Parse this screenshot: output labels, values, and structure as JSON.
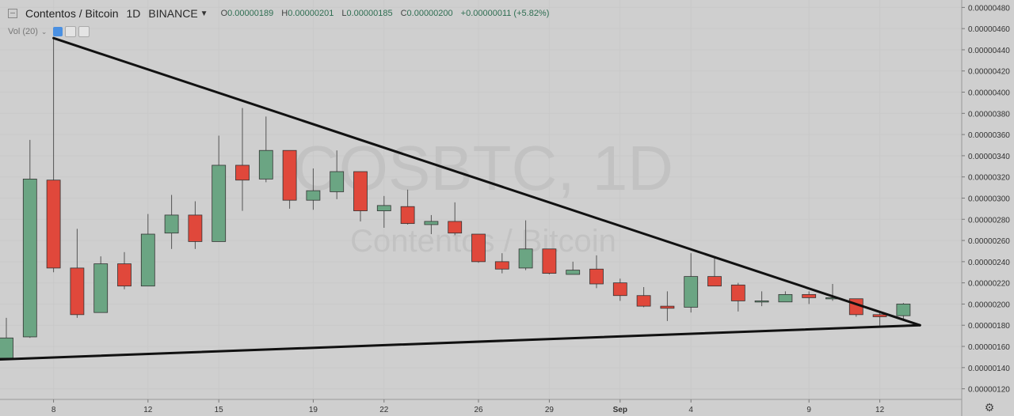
{
  "header": {
    "symbol": "Contentos / Bitcoin",
    "interval": "1D",
    "exchange": "BINANCE",
    "open_label": "O",
    "open": "0.00000189",
    "high_label": "H",
    "high": "0.00000201",
    "low_label": "L",
    "low": "0.00000185",
    "close_label": "C",
    "close": "0.00000200",
    "change": "+0.00000011 (+5.82%)"
  },
  "volume_indicator": {
    "label": "Vol (20)"
  },
  "watermark": {
    "line1": "COSBTC, 1D",
    "line2": "Contentos / Bitcoin"
  },
  "colors": {
    "up": "#6ba583",
    "down": "#e0483b",
    "background": "#cfcfcf",
    "trendline": "#111111"
  },
  "chart_data": {
    "type": "candlestick",
    "y_unit": "BTC",
    "ylim": [
      1.1e-06,
      4.87e-06
    ],
    "y_ticks": [
      "0.00000120",
      "0.00000140",
      "0.00000160",
      "0.00000180",
      "0.00000200",
      "0.00000220",
      "0.00000240",
      "0.00000260",
      "0.00000280",
      "0.00000300",
      "0.00000320",
      "0.00000340",
      "0.00000360",
      "0.00000380",
      "0.00000400",
      "0.00000420",
      "0.00000440",
      "0.00000460",
      "0.00000480"
    ],
    "x_ticks": [
      "8",
      "12",
      "15",
      "19",
      "22",
      "26",
      "29",
      "Sep",
      "4",
      "9",
      "12"
    ],
    "candles": [
      {
        "open": 1.49e-06,
        "high": 1.87e-06,
        "low": 1.47e-06,
        "close": 1.68e-06
      },
      {
        "open": 1.69e-06,
        "high": 3.55e-06,
        "low": 1.68e-06,
        "close": 3.18e-06
      },
      {
        "open": 3.17e-06,
        "high": 4.5e-06,
        "low": 2.3e-06,
        "close": 2.34e-06
      },
      {
        "open": 2.34e-06,
        "high": 2.71e-06,
        "low": 1.87e-06,
        "close": 1.9e-06
      },
      {
        "open": 1.92e-06,
        "high": 2.45e-06,
        "low": 1.92e-06,
        "close": 2.38e-06
      },
      {
        "open": 2.38e-06,
        "high": 2.49e-06,
        "low": 2.14e-06,
        "close": 2.17e-06
      },
      {
        "open": 2.17e-06,
        "high": 2.85e-06,
        "low": 2.17e-06,
        "close": 2.66e-06
      },
      {
        "open": 2.67e-06,
        "high": 3.03e-06,
        "low": 2.52e-06,
        "close": 2.84e-06
      },
      {
        "open": 2.84e-06,
        "high": 2.97e-06,
        "low": 2.52e-06,
        "close": 2.59e-06
      },
      {
        "open": 2.59e-06,
        "high": 3.59e-06,
        "low": 2.59e-06,
        "close": 3.31e-06
      },
      {
        "open": 3.31e-06,
        "high": 3.85e-06,
        "low": 2.88e-06,
        "close": 3.17e-06
      },
      {
        "open": 3.18e-06,
        "high": 3.77e-06,
        "low": 3.15e-06,
        "close": 3.45e-06
      },
      {
        "open": 3.45e-06,
        "high": 3.45e-06,
        "low": 2.9e-06,
        "close": 2.98e-06
      },
      {
        "open": 2.98e-06,
        "high": 3.28e-06,
        "low": 2.89e-06,
        "close": 3.07e-06
      },
      {
        "open": 3.06e-06,
        "high": 3.45e-06,
        "low": 2.99e-06,
        "close": 3.25e-06
      },
      {
        "open": 3.25e-06,
        "high": 3.25e-06,
        "low": 2.78e-06,
        "close": 2.88e-06
      },
      {
        "open": 2.88e-06,
        "high": 3.02e-06,
        "low": 2.72e-06,
        "close": 2.93e-06
      },
      {
        "open": 2.92e-06,
        "high": 3.08e-06,
        "low": 2.75e-06,
        "close": 2.76e-06
      },
      {
        "open": 2.75e-06,
        "high": 2.84e-06,
        "low": 2.66e-06,
        "close": 2.78e-06
      },
      {
        "open": 2.78e-06,
        "high": 2.96e-06,
        "low": 2.65e-06,
        "close": 2.67e-06
      },
      {
        "open": 2.66e-06,
        "high": 2.66e-06,
        "low": 2.39e-06,
        "close": 2.4e-06
      },
      {
        "open": 2.4e-06,
        "high": 2.48e-06,
        "low": 2.29e-06,
        "close": 2.33e-06
      },
      {
        "open": 2.34e-06,
        "high": 2.79e-06,
        "low": 2.32e-06,
        "close": 2.52e-06
      },
      {
        "open": 2.52e-06,
        "high": 2.52e-06,
        "low": 2.28e-06,
        "close": 2.29e-06
      },
      {
        "open": 2.28e-06,
        "high": 2.4e-06,
        "low": 2.28e-06,
        "close": 2.32e-06
      },
      {
        "open": 2.33e-06,
        "high": 2.46e-06,
        "low": 2.15e-06,
        "close": 2.19e-06
      },
      {
        "open": 2.2e-06,
        "high": 2.24e-06,
        "low": 2.03e-06,
        "close": 2.08e-06
      },
      {
        "open": 2.08e-06,
        "high": 2.16e-06,
        "low": 1.97e-06,
        "close": 1.98e-06
      },
      {
        "open": 1.98e-06,
        "high": 2.12e-06,
        "low": 1.84e-06,
        "close": 1.96e-06
      },
      {
        "open": 1.97e-06,
        "high": 2.48e-06,
        "low": 1.92e-06,
        "close": 2.26e-06
      },
      {
        "open": 2.26e-06,
        "high": 2.44e-06,
        "low": 2.17e-06,
        "close": 2.17e-06
      },
      {
        "open": 2.18e-06,
        "high": 2.2e-06,
        "low": 1.93e-06,
        "close": 2.03e-06
      },
      {
        "open": 2.02e-06,
        "high": 2.12e-06,
        "low": 1.98e-06,
        "close": 2.03e-06
      },
      {
        "open": 2.02e-06,
        "high": 2.12e-06,
        "low": 2.02e-06,
        "close": 2.09e-06
      },
      {
        "open": 2.09e-06,
        "high": 2.12e-06,
        "low": 2e-06,
        "close": 2.06e-06
      },
      {
        "open": 2.05e-06,
        "high": 2.19e-06,
        "low": 2.03e-06,
        "close": 2.06e-06
      },
      {
        "open": 2.05e-06,
        "high": 2.05e-06,
        "low": 1.88e-06,
        "close": 1.9e-06
      },
      {
        "open": 1.9e-06,
        "high": 1.92e-06,
        "low": 1.79e-06,
        "close": 1.88e-06
      },
      {
        "open": 1.89e-06,
        "high": 2.01e-06,
        "low": 1.85e-06,
        "close": 2e-06
      }
    ],
    "drawings": [
      {
        "type": "trendline",
        "from": {
          "candle": 2,
          "value": 4.51e-06
        },
        "to": {
          "candle": 38.7,
          "value": 1.8e-06
        }
      },
      {
        "type": "trendline",
        "from": {
          "candle": -2.3,
          "value": 1.46e-06
        },
        "to": {
          "candle": 38.7,
          "value": 1.8e-06
        }
      }
    ]
  }
}
